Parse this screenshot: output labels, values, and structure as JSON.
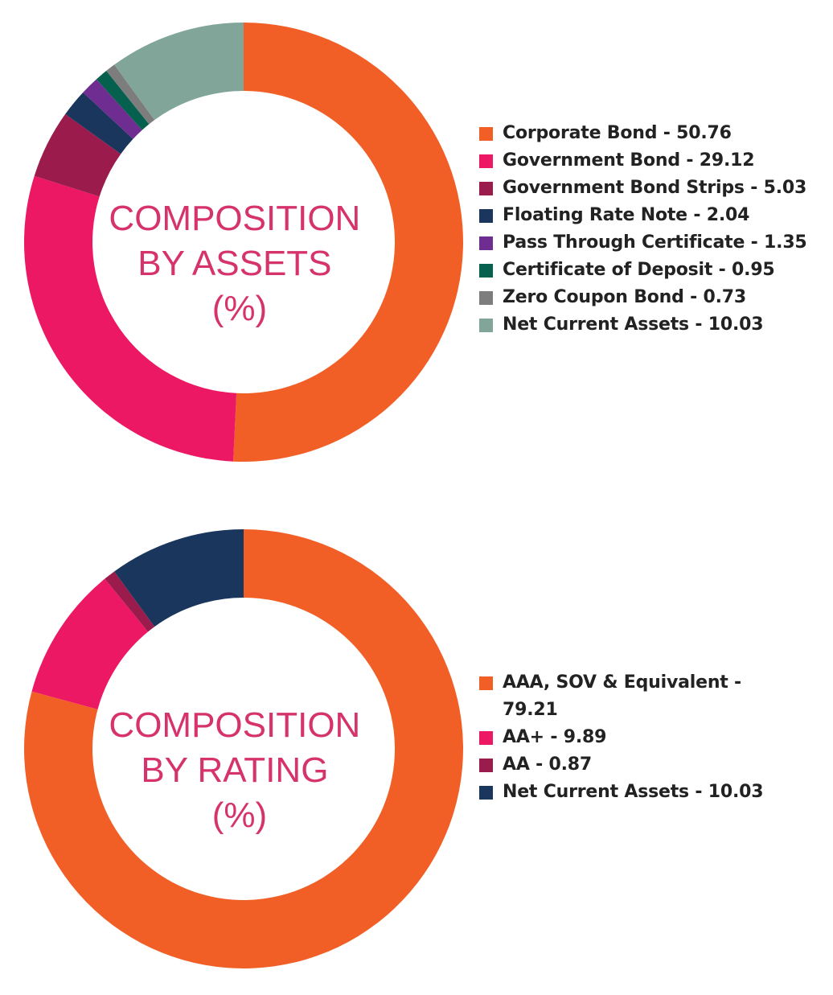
{
  "chart_data": [
    {
      "type": "pie",
      "center_label": [
        "COMPOSITION",
        "BY ASSETS",
        "(%)"
      ],
      "series": [
        {
          "name": "Corporate Bond",
          "label": "Corporate Bond - 50.76",
          "value": 50.76,
          "color": "#f15f27"
        },
        {
          "name": "Government Bond",
          "label": "Government Bond - 29.12",
          "value": 29.12,
          "color": "#ec1863"
        },
        {
          "name": "Government Bond Strips",
          "label": "Government Bond Strips - 5.03",
          "value": 5.03,
          "color": "#9b1b4d"
        },
        {
          "name": "Floating Rate Note",
          "label": "Floating Rate Note - 2.04",
          "value": 2.04,
          "color": "#1b365d"
        },
        {
          "name": "Pass Through Certificate",
          "label": "Pass Through Certificate - 1.35",
          "value": 1.35,
          "color": "#6f2c91"
        },
        {
          "name": "Certificate of Deposit",
          "label": "Certificate of Deposit - 0.95",
          "value": 0.95,
          "color": "#05614e"
        },
        {
          "name": "Zero Coupon Bond",
          "label": "Zero Coupon Bond - 0.73",
          "value": 0.73,
          "color": "#7d7d7d"
        },
        {
          "name": "Net Current Assets",
          "label": "Net Current Assets - 10.03",
          "value": 10.03,
          "color": "#82a59a"
        }
      ],
      "legend_position": "right"
    },
    {
      "type": "pie",
      "center_label": [
        "COMPOSITION",
        "BY RATING",
        "(%)"
      ],
      "series": [
        {
          "name": "AAA, SOV & Equivalent",
          "label": "AAA, SOV & Equivalent - 79.21",
          "value": 79.21,
          "color": "#f15f27"
        },
        {
          "name": "AA+",
          "label": "AA+ - 9.89",
          "value": 9.89,
          "color": "#ec1863"
        },
        {
          "name": "AA",
          "label": "AA - 0.87",
          "value": 0.87,
          "color": "#9b1b4d"
        },
        {
          "name": "Net Current Assets",
          "label": "Net Current Assets - 10.03",
          "value": 10.03,
          "color": "#1b365d"
        }
      ],
      "legend_position": "right"
    }
  ]
}
